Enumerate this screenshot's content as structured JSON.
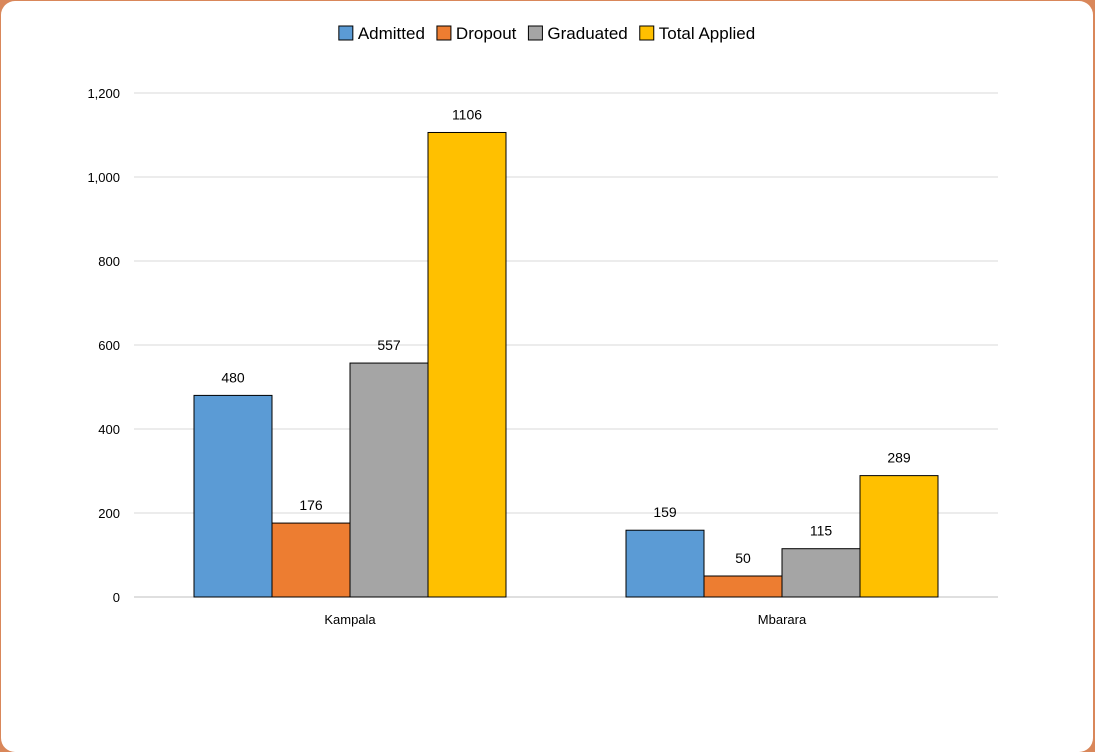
{
  "chart_data": {
    "type": "bar",
    "categories": [
      "Kampala",
      "Mbarara"
    ],
    "series": [
      {
        "name": "Admitted",
        "color": "#5b9bd5",
        "values": [
          480,
          159
        ]
      },
      {
        "name": "Dropout",
        "color": "#ed7d31",
        "values": [
          176,
          50
        ]
      },
      {
        "name": "Graduated",
        "color": "#a5a5a5",
        "values": [
          557,
          115
        ]
      },
      {
        "name": "Total Applied",
        "color": "#ffc000",
        "values": [
          1106,
          289
        ]
      }
    ],
    "ylim": [
      0,
      1200
    ],
    "yticks": [
      0,
      200,
      400,
      600,
      800,
      1000,
      1200
    ],
    "ytick_labels": [
      "0",
      "200",
      "400",
      "600",
      "800",
      "1,000",
      "1,200"
    ],
    "data_labels": [
      [
        "480",
        "159"
      ],
      [
        "176",
        "50"
      ],
      [
        "557",
        "115"
      ],
      [
        "1106",
        "289"
      ]
    ],
    "grid": true,
    "legend_position": "top"
  },
  "colors": {
    "frame": "#d9875a",
    "gridline": "#d9d9d9",
    "axis": "#bfbfbf",
    "bar_outline": "#000000"
  }
}
